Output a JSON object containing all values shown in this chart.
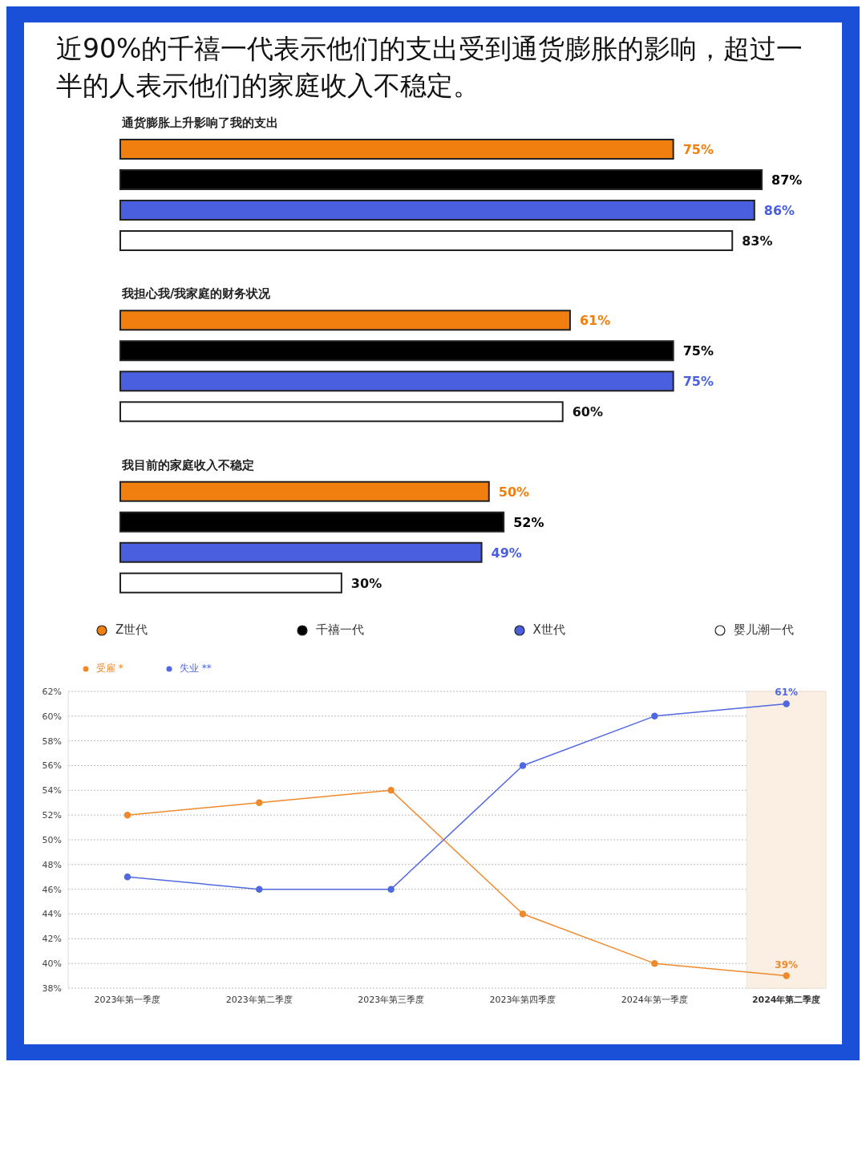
{
  "chart_data": [
    {
      "type": "bar",
      "orientation": "horizontal",
      "title": "近90%的千禧一代表示他们的支出受到通货膨胀的影响，超过一半的人表示他们的家庭收入不稳定。",
      "categories": [
        "通货膨胀上升影响了我的支出",
        "我担心我/我家庭的财务状况",
        "我目前的家庭收入不稳定"
      ],
      "tick_labels": "y",
      "legend": "bottom",
      "series": [
        {
          "name": "Z世代",
          "color": "#f07f0f",
          "values": [
            75,
            61,
            50
          ],
          "value_labels": [
            "75%",
            "61%",
            "50%"
          ]
        },
        {
          "name": "千禧一代",
          "color": "#000000",
          "values": [
            87,
            75,
            52
          ],
          "value_labels": [
            "87%",
            "75%",
            "52%"
          ]
        },
        {
          "name": "X世代",
          "color": "#4a5fe0",
          "values": [
            86,
            75,
            49
          ],
          "value_labels": [
            "86%",
            "75%",
            "49%"
          ]
        },
        {
          "name": "婴儿潮一代",
          "color": "#ffffff",
          "values": [
            83,
            60,
            30
          ],
          "value_labels": [
            "83%",
            "60%",
            "30%"
          ]
        }
      ]
    },
    {
      "type": "line",
      "categories": [
        "2023年第一季度",
        "2023年第二季度",
        "2023年第三季度",
        "2023年第四季度",
        "2024年第一季度",
        "2024年第二季度"
      ],
      "ylim": [
        38,
        62
      ],
      "yticks": [
        {
          "value": 38,
          "label": "38%"
        },
        {
          "value": 40,
          "label": "40%"
        },
        {
          "value": 42,
          "label": "42%"
        },
        {
          "value": 44,
          "label": "44%"
        },
        {
          "value": 46,
          "label": "46%"
        },
        {
          "value": 48,
          "label": "48%"
        },
        {
          "value": 50,
          "label": "50%"
        },
        {
          "value": 52,
          "label": "52%"
        },
        {
          "value": 54,
          "label": "54%"
        },
        {
          "value": 56,
          "label": "56%"
        },
        {
          "value": 58,
          "label": "58%"
        },
        {
          "value": 60,
          "label": "60%"
        },
        {
          "value": 62,
          "label": "62%"
        }
      ],
      "grid": "y",
      "legend": "top left",
      "marker": "circle",
      "bands": [
        {
          "axis": "x",
          "from": "2024年第二季度",
          "to": "2024年第二季度",
          "color": "#fbefe3"
        }
      ],
      "series": [
        {
          "name": "受雇 *",
          "color": "#ee8a2c",
          "values": [
            52,
            53,
            54,
            44,
            40,
            39
          ],
          "value_labels": [
            null,
            null,
            null,
            null,
            null,
            "39%"
          ]
        },
        {
          "name": "失业 **",
          "color": "#5068e0",
          "values": [
            47,
            46,
            46,
            56,
            60,
            61
          ],
          "value_labels": [
            null,
            null,
            null,
            null,
            null,
            "61%"
          ]
        }
      ]
    }
  ]
}
